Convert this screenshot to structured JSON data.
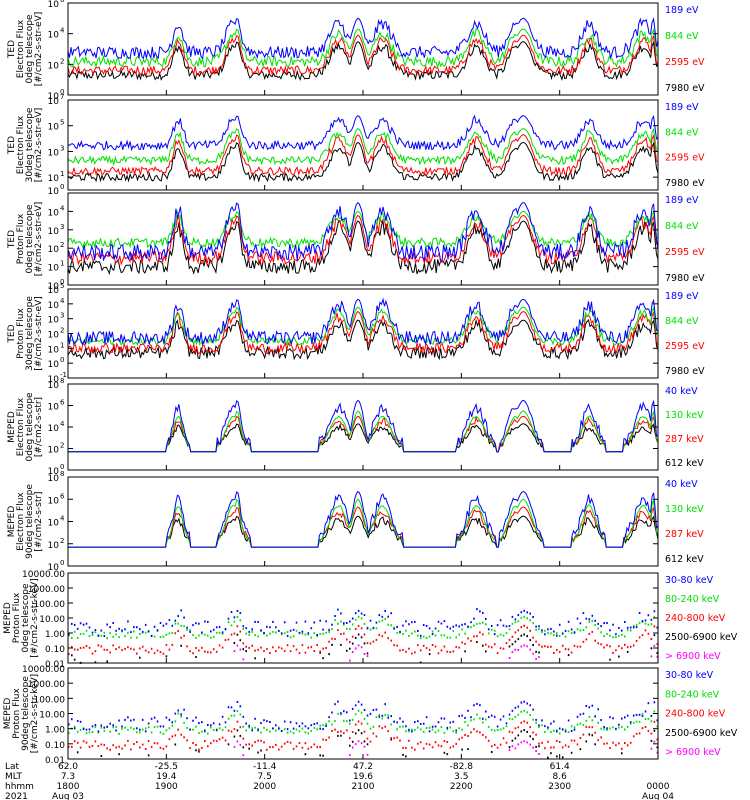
{
  "colors": {
    "black": "#000000",
    "red": "#ff0000",
    "green": "#00e000",
    "blue": "#0000ff",
    "magenta": "#ff00ff"
  },
  "chart_data": [
    {
      "type": "line",
      "scale": "log",
      "ylabel": [
        "TED",
        "Electron Flux",
        "0deg telescope",
        "[#/cm2-s-str-eV]"
      ],
      "ylim": [
        1,
        1000000
      ],
      "yticks": [
        {
          "v": 1,
          "label": "10"
        },
        {
          "v": 100,
          "label": "10"
        },
        {
          "v": 10000,
          "label": "10"
        },
        {
          "v": 1000000,
          "label": "10"
        }
      ],
      "ytick_exp": [
        "0",
        "2",
        "4",
        "6"
      ],
      "series": [
        {
          "name": "7980 eV",
          "color": "black",
          "base": 20,
          "peak": 3000,
          "noise": 0.3
        },
        {
          "name": "2595 eV",
          "color": "red",
          "base": 40,
          "peak": 8000,
          "noise": 0.3
        },
        {
          "name": "844 eV",
          "color": "green",
          "base": 150,
          "peak": 20000,
          "noise": 0.35
        },
        {
          "name": "189 eV",
          "color": "blue",
          "base": 600,
          "peak": 100000,
          "noise": 0.4
        }
      ]
    },
    {
      "type": "line",
      "scale": "log",
      "ylabel": [
        "TED",
        "Electron Flux",
        "30deg telescope",
        "[#/cm2-s-str-eV]"
      ],
      "ylim": [
        1,
        10000000
      ],
      "yticks": [
        {
          "v": 1,
          "label": "10"
        },
        {
          "v": 10,
          "label": "10"
        },
        {
          "v": 1000,
          "label": "10"
        },
        {
          "v": 100000,
          "label": "10"
        },
        {
          "v": 10000000,
          "label": "10"
        }
      ],
      "ytick_exp": [
        "0",
        "1",
        "3",
        "5",
        "7"
      ],
      "series": [
        {
          "name": "7980 eV",
          "color": "black",
          "base": 10,
          "peak": 5000,
          "noise": 0.3
        },
        {
          "name": "2595 eV",
          "color": "red",
          "base": 30,
          "peak": 20000,
          "noise": 0.3
        },
        {
          "name": "844 eV",
          "color": "green",
          "base": 200,
          "peak": 60000,
          "noise": 0.3
        },
        {
          "name": "189 eV",
          "color": "blue",
          "base": 3000,
          "peak": 600000,
          "noise": 0.35
        }
      ]
    },
    {
      "type": "line",
      "scale": "log",
      "ylabel": [
        "TED",
        "Proton Flux",
        "0deg telescope",
        "[#/cm2-s-str-eV]"
      ],
      "ylim": [
        1,
        100000
      ],
      "yticks": [
        {
          "v": 1,
          "label": "10"
        },
        {
          "v": 10,
          "label": "10"
        },
        {
          "v": 100,
          "label": "10"
        },
        {
          "v": 1000,
          "label": "10"
        },
        {
          "v": 10000,
          "label": "10"
        }
      ],
      "ytick_exp": [
        "0",
        "1",
        "2",
        "3",
        "4"
      ],
      "series": [
        {
          "name": "7980 eV",
          "color": "black",
          "base": 10,
          "peak": 3000,
          "noise": 0.4
        },
        {
          "name": "2595 eV",
          "color": "red",
          "base": 30,
          "peak": 6000,
          "noise": 0.35
        },
        {
          "name": "844 eV",
          "color": "green",
          "base": 200,
          "peak": 10000,
          "noise": 0.25
        },
        {
          "name": "189 eV",
          "color": "blue",
          "base": 60,
          "peak": 30000,
          "noise": 0.45
        }
      ]
    },
    {
      "type": "line",
      "scale": "log",
      "ylabel": [
        "TED",
        "Proton Flux",
        "30deg telescope",
        "[#/cm2-s-str-eV]"
      ],
      "ylim": [
        0.1,
        100000
      ],
      "yticks": [
        {
          "v": 0.1,
          "label": "10"
        },
        {
          "v": 1,
          "label": "10"
        },
        {
          "v": 10,
          "label": "10"
        },
        {
          "v": 100,
          "label": "10"
        },
        {
          "v": 1000,
          "label": "10"
        },
        {
          "v": 10000,
          "label": "10"
        },
        {
          "v": 100000,
          "label": "10"
        }
      ],
      "ytick_exp": [
        "-1",
        "0",
        "1",
        "2",
        "3",
        "4",
        "5"
      ],
      "series": [
        {
          "name": "7980 eV",
          "color": "black",
          "base": 5,
          "peak": 800,
          "noise": 0.4
        },
        {
          "name": "2595 eV",
          "color": "red",
          "base": 10,
          "peak": 3000,
          "noise": 0.35
        },
        {
          "name": "844 eV",
          "color": "green",
          "base": 30,
          "peak": 6000,
          "noise": 0.25
        },
        {
          "name": "189 eV",
          "color": "blue",
          "base": 50,
          "peak": 20000,
          "noise": 0.45
        }
      ]
    },
    {
      "type": "line",
      "scale": "log",
      "ylabel": [
        "MEPED",
        "Electron Flux",
        "0deg telescope",
        "[#/cm2-s-str]"
      ],
      "ylim": [
        1,
        100000000
      ],
      "yticks": [
        {
          "v": 1,
          "label": "10"
        },
        {
          "v": 100,
          "label": "10"
        },
        {
          "v": 10000,
          "label": "10"
        },
        {
          "v": 1000000,
          "label": "10"
        },
        {
          "v": 100000000,
          "label": "10"
        }
      ],
      "ytick_exp": [
        "0",
        "2",
        "4",
        "6",
        "8"
      ],
      "series": [
        {
          "name": "612 keV",
          "color": "black",
          "base": 150,
          "peak": 20000,
          "noise": 0.3
        },
        {
          "name": "287 keV",
          "color": "red",
          "base": 180,
          "peak": 100000,
          "noise": 0.3
        },
        {
          "name": "130 keV",
          "color": "green",
          "base": 110,
          "peak": 300000,
          "noise": 0.1
        },
        {
          "name": "40 keV",
          "color": "blue",
          "base": 200,
          "peak": 3000000,
          "noise": 0.5
        }
      ]
    },
    {
      "type": "line",
      "scale": "log",
      "ylabel": [
        "MEPED",
        "Electron Flux",
        "90deg telescope",
        "[#/cm2-s-str]"
      ],
      "ylim": [
        1,
        100000000
      ],
      "yticks": [
        {
          "v": 1,
          "label": "10"
        },
        {
          "v": 100,
          "label": "10"
        },
        {
          "v": 10000,
          "label": "10"
        },
        {
          "v": 1000000,
          "label": "10"
        },
        {
          "v": 100000000,
          "label": "10"
        }
      ],
      "ytick_exp": [
        "0",
        "2",
        "4",
        "6",
        "8"
      ],
      "series": [
        {
          "name": "612 keV",
          "color": "black",
          "base": 150,
          "peak": 30000,
          "noise": 0.3
        },
        {
          "name": "287 keV",
          "color": "red",
          "base": 200,
          "peak": 200000,
          "noise": 0.3
        },
        {
          "name": "130 keV",
          "color": "green",
          "base": 110,
          "peak": 1000000,
          "noise": 0.1
        },
        {
          "name": "40 keV",
          "color": "blue",
          "base": 300,
          "peak": 5000000,
          "noise": 0.45
        }
      ]
    },
    {
      "type": "scatter",
      "scale": "log",
      "ylabel": [
        "MEPED",
        "Proton Flux",
        "0deg telescope",
        "[#/cm2-s-str-keV]"
      ],
      "ylim": [
        0.01,
        10000
      ],
      "yticks": [
        {
          "v": 0.01,
          "label": "0.01"
        },
        {
          "v": 0.1,
          "label": "0.10"
        },
        {
          "v": 1,
          "label": "1.00"
        },
        {
          "v": 10,
          "label": "10.00"
        },
        {
          "v": 100,
          "label": "100.00"
        },
        {
          "v": 1000,
          "label": "1000.00"
        },
        {
          "v": 10000,
          "label": "10000.00"
        }
      ],
      "series": [
        {
          "name": "> 6900 keV",
          "color": "magenta",
          "base": 0.01,
          "peak": 0.15,
          "noise": 0.3
        },
        {
          "name": "2500-6900 keV",
          "color": "black",
          "base": 0.02,
          "peak": 0.8,
          "noise": 0.3
        },
        {
          "name": "240-800 keV",
          "color": "red",
          "base": 0.08,
          "peak": 3,
          "noise": 0.3
        },
        {
          "name": "80-240 keV",
          "color": "green",
          "base": 0.8,
          "peak": 12,
          "noise": 0.25
        },
        {
          "name": "30-80 keV",
          "color": "blue",
          "base": 2,
          "peak": 30,
          "noise": 0.5
        }
      ]
    },
    {
      "type": "scatter",
      "scale": "log",
      "ylabel": [
        "MEPED",
        "Proton Flux",
        "90deg telescope",
        "[#/cm2-s-str-keV]"
      ],
      "ylim": [
        0.01,
        10000
      ],
      "yticks": [
        {
          "v": 0.01,
          "label": "0.01"
        },
        {
          "v": 0.1,
          "label": "0.10"
        },
        {
          "v": 1,
          "label": "1.00"
        },
        {
          "v": 10,
          "label": "10.00"
        },
        {
          "v": 100,
          "label": "100.00"
        },
        {
          "v": 1000,
          "label": "1000.00"
        },
        {
          "v": 10000,
          "label": "10000.00"
        }
      ],
      "series": [
        {
          "name": "> 6900 keV",
          "color": "magenta",
          "base": 0.01,
          "peak": 0.15,
          "noise": 0.3
        },
        {
          "name": "2500-6900 keV",
          "color": "black",
          "base": 0.02,
          "peak": 0.8,
          "noise": 0.3
        },
        {
          "name": "240-800 keV",
          "color": "red",
          "base": 0.08,
          "peak": 3,
          "noise": 0.3
        },
        {
          "name": "80-240 keV",
          "color": "green",
          "base": 0.8,
          "peak": 15,
          "noise": 0.25
        },
        {
          "name": "30-80 keV",
          "color": "blue",
          "base": 2,
          "peak": 60,
          "noise": 0.5
        }
      ]
    }
  ],
  "x_axis": {
    "row_labels": [
      "Lat",
      "MLT",
      "hhmm",
      "2021"
    ],
    "ticks": [
      {
        "lat": "62.0",
        "mlt": "7.3",
        "hhmm": "1800",
        "date": "Aug 03"
      },
      {
        "lat": "-25.5",
        "mlt": "19.4",
        "hhmm": "1900",
        "date": ""
      },
      {
        "lat": "-11.4",
        "mlt": "7.5",
        "hhmm": "2000",
        "date": ""
      },
      {
        "lat": "47.2",
        "mlt": "19.6",
        "hhmm": "2100",
        "date": ""
      },
      {
        "lat": "-82.8",
        "mlt": "3.5",
        "hhmm": "2200",
        "date": ""
      },
      {
        "lat": "61.4",
        "mlt": "8.6",
        "hhmm": "2300",
        "date": ""
      },
      {
        "lat": "",
        "mlt": "",
        "hhmm": "0000",
        "date": "Aug 04"
      }
    ]
  }
}
